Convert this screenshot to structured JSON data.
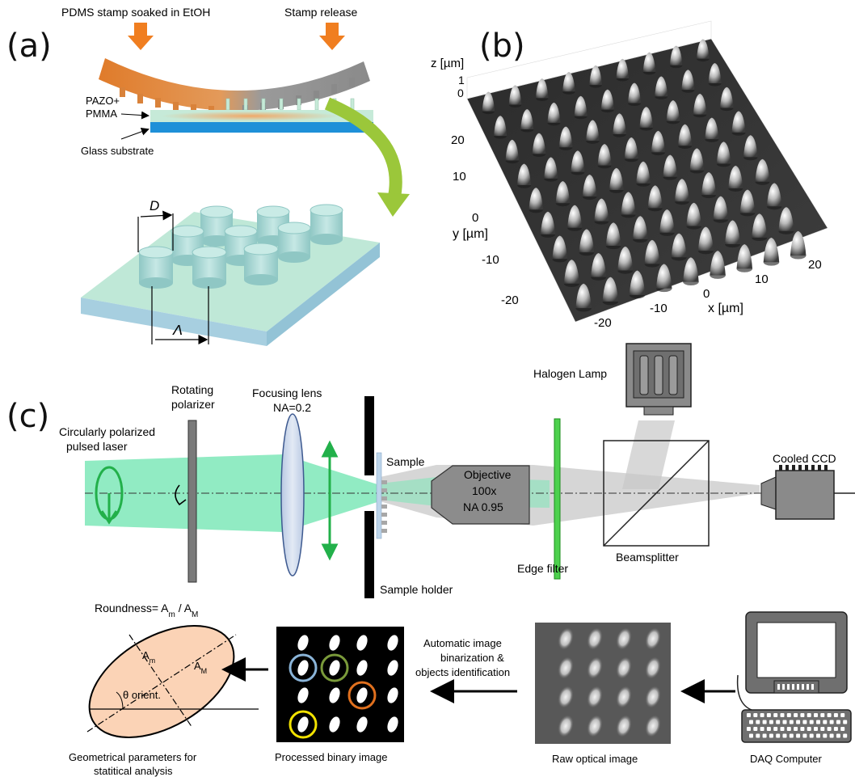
{
  "panel_a": {
    "label": "(a)",
    "stamp_soak": "PDMS stamp soaked in EtOH",
    "stamp_release": "Stamp release",
    "film_line1": "PAZO+",
    "film_line2": "PMMA",
    "substrate": "Glass substrate",
    "diameter_symbol": "D",
    "period_symbol": "Λ"
  },
  "panel_b": {
    "label": "(b)",
    "z_axis": "z [µm]",
    "y_axis": "y  [µm]",
    "x_axis": "x [µm]",
    "z_ticks": [
      "1",
      "0"
    ],
    "y_ticks": [
      "20",
      "10",
      "0",
      "-10",
      "-20"
    ],
    "x_ticks": [
      "-20",
      "-10",
      "0",
      "10",
      "20"
    ]
  },
  "panel_c": {
    "label": "(c)",
    "laser_line1": "Circularly polarized",
    "laser_line2": "pulsed laser",
    "polarizer_line1": "Rotating",
    "polarizer_line2": "polarizer",
    "lens_line1": "Focusing lens",
    "lens_line2": "NA=0.2",
    "sample": "Sample",
    "sample_holder": "Sample holder",
    "objective_line1": "Objective",
    "objective_line2": "100x",
    "objective_line3": "NA 0.95",
    "edge_filter": "Edge filter",
    "halogen_lamp": "Halogen Lamp",
    "beamsplitter": "Beamsplitter",
    "ccd": "Cooled CCD"
  },
  "analysis": {
    "roundness_prefix": "Roundness= A",
    "roundness_sub_m": "m",
    "roundness_mid": " / A",
    "roundness_sub_M": "M",
    "axis_minor": "A",
    "axis_minor_sub": "m",
    "axis_major": "A",
    "axis_major_sub": "M",
    "orientation": "θ orient.",
    "geo_line1": "Geometrical parameters for",
    "geo_line2": "statitical analysis",
    "processed": "Processed binary image",
    "auto_line1": "Automatic image",
    "auto_line2": "binarization &",
    "auto_line3": "objects identification",
    "raw": "Raw optical image",
    "daq": "DAQ Computer"
  },
  "colors": {
    "stamp_orange": "#e07b2a",
    "stamp_gray": "#8a8a8a",
    "film_green": "#c6ead8",
    "glass_blue": "#1e90d8",
    "pillar_teal": "#a9d9d6",
    "laser_green": "#7ee8b8",
    "arrow_green": "#22b04a",
    "lens_blue": "#c9d6ea",
    "ellipse_fill": "#fbd3b6",
    "ring_blue": "#8ab4d8",
    "ring_green": "#7a9a3a",
    "ring_orange": "#e0701e",
    "ring_yellow": "#f2e200"
  }
}
